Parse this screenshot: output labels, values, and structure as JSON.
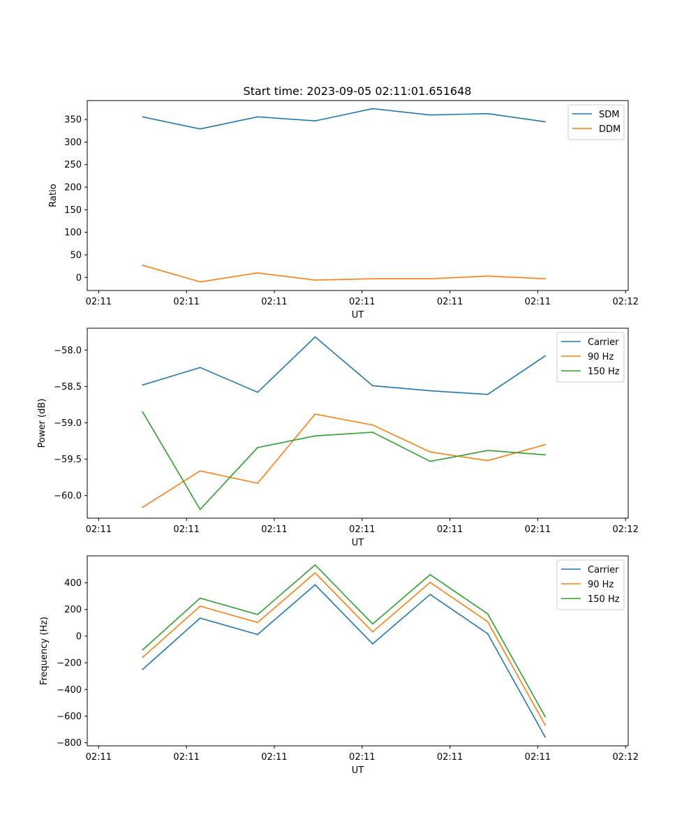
{
  "figure_title": "Start time: 2023-09-05 02:11:01.651648",
  "chart_data": [
    {
      "type": "line",
      "title": "Start time: 2023-09-05 02:11:01.651648",
      "xlabel": "UT",
      "ylabel": "Ratio",
      "x": [
        0.5,
        1.155,
        1.81,
        2.465,
        3.12,
        3.775,
        4.43,
        5.085
      ],
      "xlim": [
        -0.13,
        6.03
      ],
      "xticks": [
        0,
        1,
        2,
        3,
        4,
        5,
        6
      ],
      "xtick_labels": [
        "02:11",
        "02:11",
        "02:11",
        "02:11",
        "02:11",
        "02:11",
        "02:12"
      ],
      "ylim": [
        -29,
        392
      ],
      "yticks": [
        0,
        50,
        100,
        150,
        200,
        250,
        300,
        350
      ],
      "ytick_labels": [
        "0",
        "50",
        "100",
        "150",
        "200",
        "250",
        "300",
        "350"
      ],
      "legend_position": "top-right",
      "series": [
        {
          "name": "SDM",
          "color": "#1f77b4",
          "values": [
            356,
            329,
            356,
            347,
            374,
            360,
            363,
            345
          ]
        },
        {
          "name": "DDM",
          "color": "#ff7f0e",
          "values": [
            27,
            -10,
            10,
            -6,
            -3,
            -3,
            3,
            -3
          ]
        }
      ]
    },
    {
      "type": "line",
      "title": "",
      "xlabel": "UT",
      "ylabel": "Power (dB)",
      "x": [
        0.5,
        1.155,
        1.81,
        2.465,
        3.12,
        3.775,
        4.43,
        5.085
      ],
      "xlim": [
        -0.13,
        6.03
      ],
      "xticks": [
        0,
        1,
        2,
        3,
        4,
        5,
        6
      ],
      "xtick_labels": [
        "02:11",
        "02:11",
        "02:11",
        "02:11",
        "02:11",
        "02:11",
        "02:12"
      ],
      "ylim": [
        -60.31,
        -57.7
      ],
      "yticks": [
        -60.0,
        -59.5,
        -59.0,
        -58.5,
        -58.0
      ],
      "ytick_labels": [
        "−60.0",
        "−59.5",
        "−59.0",
        "−58.5",
        "−58.0"
      ],
      "legend_position": "top-right",
      "series": [
        {
          "name": "Carrier",
          "color": "#1f77b4",
          "values": [
            -58.48,
            -58.24,
            -58.58,
            -57.82,
            -58.49,
            -58.56,
            -58.61,
            -58.08
          ]
        },
        {
          "name": "90 Hz",
          "color": "#ff7f0e",
          "values": [
            -60.16,
            -59.66,
            -59.83,
            -58.88,
            -59.03,
            -59.4,
            -59.52,
            -59.3
          ]
        },
        {
          "name": "150 Hz",
          "color": "#2ca02c",
          "values": [
            -58.85,
            -60.19,
            -59.34,
            -59.18,
            -59.13,
            -59.53,
            -59.38,
            -59.44
          ]
        }
      ]
    },
    {
      "type": "line",
      "title": "",
      "xlabel": "UT",
      "ylabel": "Frequency (Hz)",
      "x": [
        0.5,
        1.155,
        1.81,
        2.465,
        3.12,
        3.775,
        4.43,
        5.085
      ],
      "xlim": [
        -0.13,
        6.03
      ],
      "xticks": [
        0,
        1,
        2,
        3,
        4,
        5,
        6
      ],
      "xtick_labels": [
        "02:11",
        "02:11",
        "02:11",
        "02:11",
        "02:11",
        "02:11",
        "02:12"
      ],
      "ylim": [
        -823,
        602
      ],
      "yticks": [
        -800,
        -600,
        -400,
        -200,
        0,
        200,
        400
      ],
      "ytick_labels": [
        "−800",
        "−600",
        "−400",
        "−200",
        "0",
        "200",
        "400"
      ],
      "legend_position": "top-right",
      "series": [
        {
          "name": "Carrier",
          "color": "#1f77b4",
          "values": [
            -250,
            135,
            12,
            385,
            -58,
            313,
            18,
            -758
          ]
        },
        {
          "name": "90 Hz",
          "color": "#ff7f0e",
          "values": [
            -160,
            225,
            102,
            474,
            32,
            403,
            108,
            -668
          ]
        },
        {
          "name": "150 Hz",
          "color": "#2ca02c",
          "values": [
            -103,
            285,
            162,
            534,
            91,
            461,
            167,
            -605
          ]
        }
      ]
    }
  ]
}
